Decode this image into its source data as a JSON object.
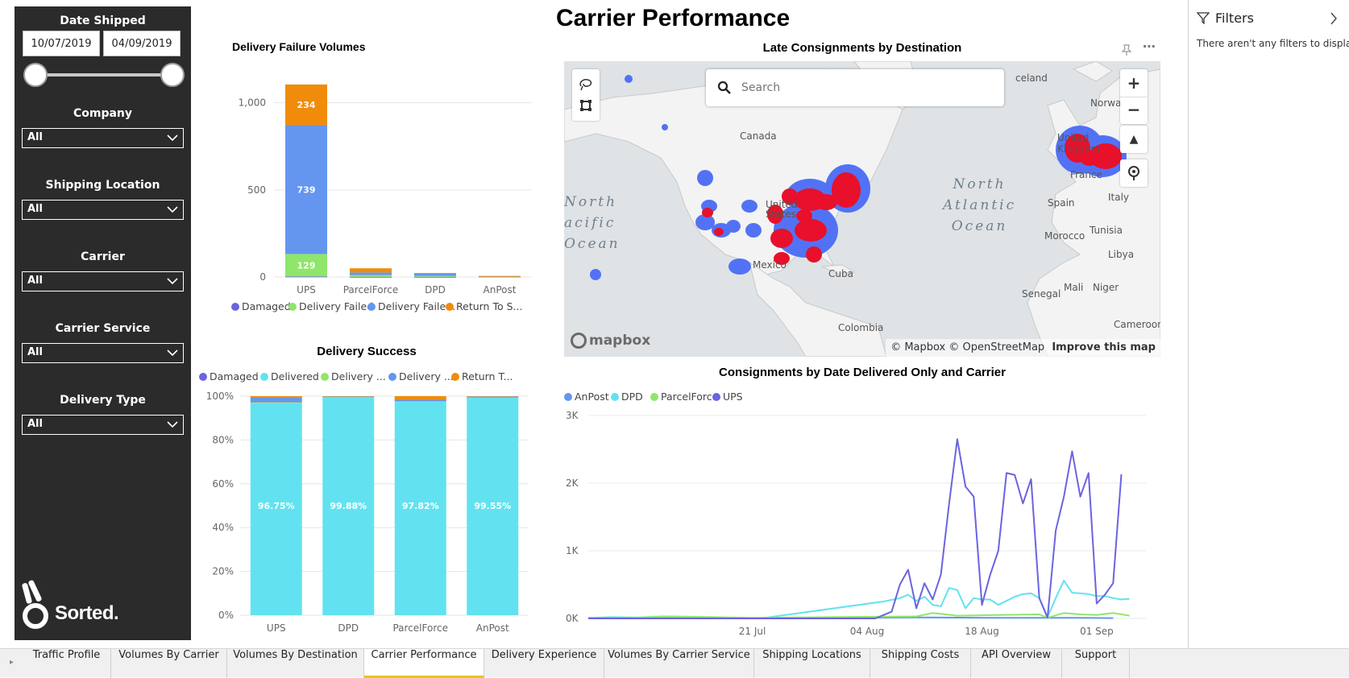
{
  "page_title": "Carrier Performance",
  "slicers": {
    "date_shipped": {
      "title": "Date Shipped",
      "start": "10/07/2019",
      "end": "04/09/2019"
    },
    "company": {
      "title": "Company",
      "value": "All"
    },
    "shipping_location": {
      "title": "Shipping Location",
      "value": "All"
    },
    "carrier": {
      "title": "Carrier",
      "value": "All"
    },
    "carrier_service": {
      "title": "Carrier Service",
      "value": "All"
    },
    "delivery_type": {
      "title": "Delivery Type",
      "value": "All"
    }
  },
  "logo_text": "Sorted.",
  "map": {
    "title": "Late Consignments by Destination",
    "search_placeholder": "Search",
    "labels": {
      "canada": "Canada",
      "united_states": "United\nStates",
      "mexico": "Mexico",
      "cuba": "Cuba",
      "colombia": "Colombia",
      "united_kingdom": "United\nKingdom",
      "france": "France",
      "spain": "Spain",
      "italy": "Italy",
      "norway": "Norway",
      "iceland": "celand",
      "morocco": "Morocco",
      "tunisia": "Tunisia",
      "libya": "Libya",
      "mali": "Mali",
      "niger": "Niger",
      "senegal": "Senegal",
      "cameroon": "Cameroon",
      "north_atlantic": "North\nAtlantic\nOcean",
      "north_pacific": "North\nacific\nOcean"
    },
    "attribution": "© Mapbox © OpenStreetMap",
    "improve_link": "Improve this map",
    "mapbox_logo": "mapbox"
  },
  "filters": {
    "title": "Filters",
    "empty_message": "There aren't any filters to display."
  },
  "tabs": [
    "Traffic Profile",
    "Volumes By Carrier",
    "Volumes By Destination",
    "Carrier Performance",
    "Delivery Experience",
    "Volumes By Carrier Service",
    "Shipping Locations",
    "Shipping Costs",
    "API Overview",
    "Support"
  ],
  "active_tab": "Carrier Performance",
  "colors": {
    "damaged": "#6b63e0",
    "delivered": "#62e2f0",
    "delivery_failed": "#8fe66a",
    "delivery_failed_other": "#6496f0",
    "return_to_sender": "#f08c0a",
    "panel": "#2b2b2b",
    "tab_accent": "#e8c51a"
  },
  "chart_data": [
    {
      "type": "bar",
      "title": "Delivery Failure Volumes",
      "categories": [
        "UPS",
        "ParcelForce",
        "DPD",
        "AnPost"
      ],
      "series": [
        {
          "name": "Damaged",
          "values": [
            3,
            1,
            1,
            0
          ],
          "color": "#6b63e0"
        },
        {
          "name": "Delivery Failed",
          "values": [
            129,
            10,
            5,
            1
          ],
          "color": "#8fe66a"
        },
        {
          "name": "Delivery Faile...",
          "values": [
            739,
            15,
            15,
            4
          ],
          "color": "#6496f0"
        },
        {
          "name": "Return To S...",
          "values": [
            234,
            24,
            2,
            1
          ],
          "color": "#f08c0a"
        }
      ],
      "data_labels": [
        "234",
        "739",
        "129"
      ],
      "yticks": [
        "0",
        "500",
        "1,000"
      ],
      "ylim": [
        0,
        1100
      ]
    },
    {
      "type": "bar",
      "title": "Delivery Success",
      "categories": [
        "UPS",
        "DPD",
        "ParcelForce",
        "AnPost"
      ],
      "series": [
        {
          "name": "Damaged",
          "values": [
            0.1,
            0.01,
            0.02,
            0.05
          ],
          "color": "#6b63e0"
        },
        {
          "name": "Delivered",
          "values": [
            96.75,
            99.88,
            97.82,
            99.55
          ],
          "color": "#62e2f0"
        },
        {
          "name": "Delivery ...",
          "values": [
            0.5,
            0.02,
            0.1,
            0.1
          ],
          "color": "#8fe66a"
        },
        {
          "name": "Delivery ...",
          "values": [
            1.9,
            0.06,
            0.4,
            0.2
          ],
          "color": "#6496f0"
        },
        {
          "name": "Return T...",
          "values": [
            0.75,
            0.03,
            1.66,
            0.1
          ],
          "color": "#f08c0a"
        }
      ],
      "data_labels": [
        "96.75%",
        "99.88%",
        "97.82%",
        "99.55%"
      ],
      "yticks": [
        "0%",
        "20%",
        "40%",
        "60%",
        "80%",
        "100%"
      ],
      "ylim": [
        0,
        100
      ]
    },
    {
      "type": "line",
      "title": "Consignments by Date Delivered Only and Carrier",
      "x_start": "2019-07-01",
      "xticks": [
        "21 Jul",
        "04 Aug",
        "18 Aug",
        "01 Sep"
      ],
      "yticks": [
        "0K",
        "1K",
        "2K",
        "3K"
      ],
      "ylim": [
        0,
        3000
      ],
      "series": [
        {
          "name": "AnPost",
          "color": "#6496f0",
          "points": [
            [
              0,
              0
            ],
            [
              10,
              5
            ],
            [
              20,
              5
            ],
            [
              30,
              10
            ],
            [
              40,
              15
            ],
            [
              50,
              10
            ],
            [
              60,
              10
            ],
            [
              64,
              5
            ]
          ]
        },
        {
          "name": "DPD",
          "color": "#62e2f0",
          "points": [
            [
              0,
              10
            ],
            [
              3,
              20
            ],
            [
              6,
              15
            ],
            [
              9,
              30
            ],
            [
              12,
              20
            ],
            [
              15,
              15
            ],
            [
              18,
              10
            ],
            [
              21,
              0
            ],
            [
              36,
              250
            ],
            [
              38,
              300
            ],
            [
              39,
              350
            ],
            [
              40,
              260
            ],
            [
              41,
              320
            ],
            [
              42,
              200
            ],
            [
              43,
              180
            ],
            [
              44,
              450
            ],
            [
              45,
              420
            ],
            [
              46,
              150
            ],
            [
              47,
              300
            ],
            [
              48,
              280
            ],
            [
              49,
              280
            ],
            [
              50,
              200
            ],
            [
              51,
              260
            ],
            [
              52,
              320
            ],
            [
              53,
              360
            ],
            [
              54,
              370
            ],
            [
              55,
              300
            ],
            [
              56,
              20
            ],
            [
              57,
              300
            ],
            [
              58,
              560
            ],
            [
              59,
              380
            ],
            [
              60,
              370
            ],
            [
              61,
              360
            ],
            [
              62,
              330
            ],
            [
              63,
              330
            ],
            [
              64,
              300
            ],
            [
              65,
              280
            ],
            [
              66,
              290
            ]
          ]
        },
        {
          "name": "ParcelForce",
          "color": "#8fe66a",
          "points": [
            [
              0,
              5
            ],
            [
              5,
              10
            ],
            [
              10,
              30
            ],
            [
              15,
              20
            ],
            [
              20,
              10
            ],
            [
              30,
              20
            ],
            [
              40,
              30
            ],
            [
              42,
              80
            ],
            [
              45,
              40
            ],
            [
              50,
              50
            ],
            [
              55,
              60
            ],
            [
              56,
              10
            ],
            [
              58,
              80
            ],
            [
              60,
              60
            ],
            [
              62,
              50
            ],
            [
              64,
              80
            ],
            [
              66,
              40
            ]
          ]
        },
        {
          "name": "UPS",
          "color": "#6b63e0",
          "points": [
            [
              0,
              0
            ],
            [
              20,
              0
            ],
            [
              35,
              0
            ],
            [
              36,
              50
            ],
            [
              37,
              100
            ],
            [
              38,
              500
            ],
            [
              39,
              720
            ],
            [
              40,
              150
            ],
            [
              41,
              520
            ],
            [
              42,
              280
            ],
            [
              43,
              650
            ],
            [
              44,
              1700
            ],
            [
              45,
              2650
            ],
            [
              46,
              1950
            ],
            [
              47,
              1800
            ],
            [
              48,
              200
            ],
            [
              49,
              640
            ],
            [
              50,
              1000
            ],
            [
              51,
              2150
            ],
            [
              52,
              2120
            ],
            [
              53,
              1700
            ],
            [
              54,
              2060
            ],
            [
              55,
              300
            ],
            [
              56,
              10
            ],
            [
              57,
              1300
            ],
            [
              58,
              1800
            ],
            [
              59,
              2470
            ],
            [
              60,
              1800
            ],
            [
              61,
              2150
            ],
            [
              62,
              220
            ],
            [
              63,
              350
            ],
            [
              64,
              520
            ],
            [
              65,
              2130
            ]
          ]
        }
      ]
    }
  ]
}
